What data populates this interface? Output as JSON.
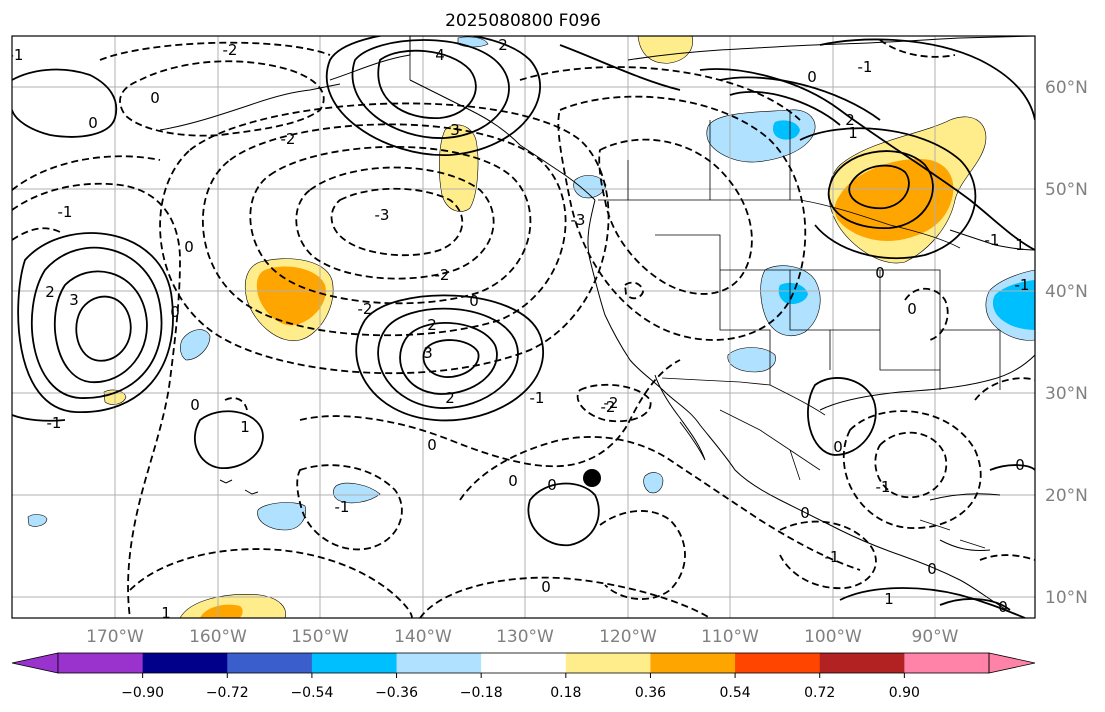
{
  "title": "2025080800 F096",
  "lon_labels": [
    "170°W",
    "160°W",
    "150°W",
    "140°W",
    "130°W",
    "120°W",
    "110°W",
    "100°W",
    "90°W"
  ],
  "lat_labels": [
    "60°N",
    "50°N",
    "40°N",
    "30°N",
    "20°N",
    "10°N"
  ],
  "colorbar": {
    "colors": [
      "#9a32cd",
      "#00008b",
      "#3a5fcd",
      "#00bfff",
      "#b0e2ff",
      "#ffffff",
      "#ffec8b",
      "#ffa500",
      "#ff4500",
      "#b22222",
      "#ff83a8"
    ],
    "tick_labels": [
      "−0.90",
      "−0.72",
      "−0.54",
      "−0.36",
      "−0.18",
      "0.18",
      "0.36",
      "0.54",
      "0.72",
      "0.90"
    ]
  },
  "contour_labels": [
    "4",
    "3",
    "0",
    "-2",
    "2",
    "0",
    "-1",
    "-2",
    "0",
    "-3",
    "2",
    "-1",
    "2",
    "3",
    "0",
    "-2",
    "-3",
    "-2",
    "-2",
    "0",
    "-1",
    "2",
    "0",
    "2",
    "3",
    "1",
    "0",
    "-1",
    "-2",
    "0",
    "0",
    "-1",
    "1",
    "0",
    "-1",
    "0",
    "0",
    "1",
    "0",
    "-1",
    "1",
    "0",
    "0",
    "1",
    "0",
    "-1",
    "-1",
    "-1",
    "0",
    "0"
  ],
  "fills": {
    "yellow": "#ffec8b",
    "orange": "#ffa500",
    "light_blue": "#b0e2ff",
    "blue": "#00bfff"
  },
  "marker": "storm-center-marker"
}
